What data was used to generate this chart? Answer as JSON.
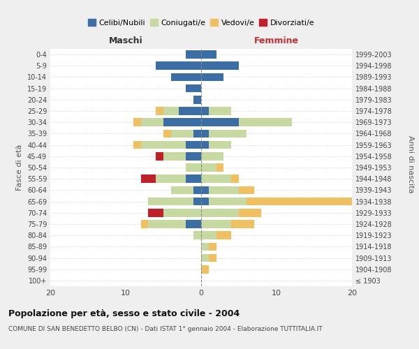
{
  "age_groups": [
    "100+",
    "95-99",
    "90-94",
    "85-89",
    "80-84",
    "75-79",
    "70-74",
    "65-69",
    "60-64",
    "55-59",
    "50-54",
    "45-49",
    "40-44",
    "35-39",
    "30-34",
    "25-29",
    "20-24",
    "15-19",
    "10-14",
    "5-9",
    "0-4"
  ],
  "birth_years": [
    "≤ 1903",
    "1904-1908",
    "1909-1913",
    "1914-1918",
    "1919-1923",
    "1924-1928",
    "1929-1933",
    "1934-1938",
    "1939-1943",
    "1944-1948",
    "1949-1953",
    "1954-1958",
    "1959-1963",
    "1964-1968",
    "1969-1973",
    "1974-1978",
    "1979-1983",
    "1984-1988",
    "1989-1993",
    "1994-1998",
    "1999-2003"
  ],
  "male": {
    "celibi": [
      0,
      0,
      0,
      0,
      0,
      2,
      0,
      1,
      1,
      2,
      0,
      2,
      2,
      1,
      5,
      3,
      1,
      2,
      4,
      6,
      2
    ],
    "coniugati": [
      0,
      0,
      0,
      0,
      1,
      5,
      5,
      6,
      3,
      4,
      2,
      3,
      6,
      3,
      3,
      2,
      0,
      0,
      0,
      0,
      0
    ],
    "vedovi": [
      0,
      0,
      0,
      0,
      0,
      1,
      0,
      0,
      0,
      0,
      0,
      0,
      1,
      1,
      1,
      1,
      0,
      0,
      0,
      0,
      0
    ],
    "divorziati": [
      0,
      0,
      0,
      0,
      0,
      0,
      2,
      0,
      0,
      2,
      0,
      1,
      0,
      0,
      0,
      0,
      0,
      0,
      0,
      0,
      0
    ]
  },
  "female": {
    "nubili": [
      0,
      0,
      0,
      0,
      0,
      0,
      0,
      1,
      1,
      0,
      0,
      0,
      1,
      1,
      5,
      1,
      0,
      0,
      3,
      5,
      2
    ],
    "coniugate": [
      0,
      0,
      1,
      1,
      2,
      4,
      5,
      5,
      4,
      4,
      2,
      3,
      3,
      5,
      7,
      3,
      0,
      0,
      0,
      0,
      0
    ],
    "vedove": [
      0,
      1,
      1,
      1,
      2,
      3,
      3,
      14,
      2,
      1,
      1,
      0,
      0,
      0,
      0,
      0,
      0,
      0,
      0,
      0,
      0
    ],
    "divorziate": [
      0,
      0,
      0,
      0,
      0,
      0,
      0,
      0,
      0,
      0,
      0,
      0,
      0,
      0,
      0,
      0,
      0,
      0,
      0,
      0,
      0
    ]
  },
  "colors": {
    "celibi": "#3a6ea5",
    "coniugati": "#c5d9a0",
    "vedovi": "#f0c060",
    "divorziati": "#c0202a"
  },
  "xlim": 20,
  "title": "Popolazione per età, sesso e stato civile - 2004",
  "subtitle": "COMUNE DI SAN BENEDETTO BELBO (CN) - Dati ISTAT 1° gennaio 2004 - Elaborazione TUTTITALIA.IT",
  "ylabel_left": "Fasce di età",
  "ylabel_right": "Anni di nascita",
  "xlabel_male": "Maschi",
  "xlabel_female": "Femmine",
  "legend_labels": [
    "Celibi/Nubili",
    "Coniugati/e",
    "Vedovi/e",
    "Divorziati/e"
  ],
  "bg_color": "#efefef",
  "plot_bg": "#ffffff"
}
